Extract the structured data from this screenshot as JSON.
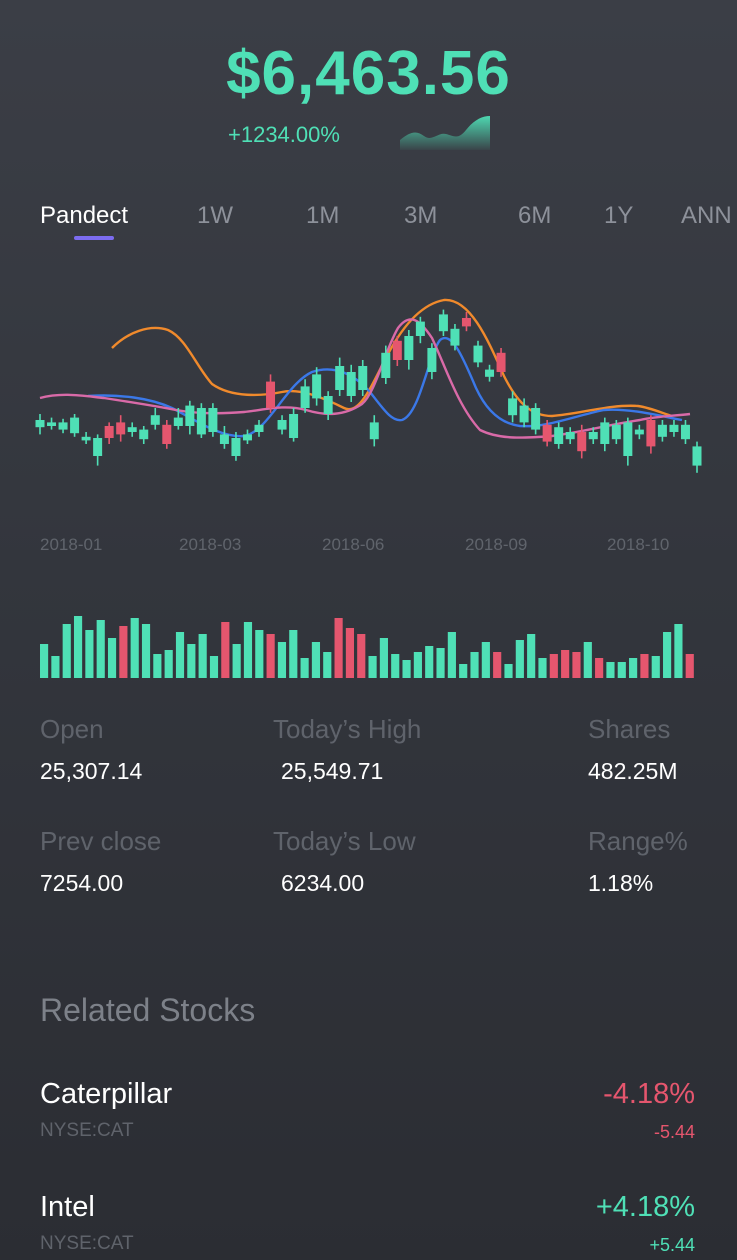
{
  "header": {
    "price": "$6,463.56",
    "change": "+1234.00%",
    "sparkline_icon": "sparkline-area-icon"
  },
  "tabs": [
    {
      "label": "Pandect",
      "active": true
    },
    {
      "label": "1W",
      "active": false
    },
    {
      "label": "1M",
      "active": false
    },
    {
      "label": "3M",
      "active": false
    },
    {
      "label": "6M",
      "active": false
    },
    {
      "label": "1Y",
      "active": false
    },
    {
      "label": "ANN",
      "active": false
    }
  ],
  "colors": {
    "up": "#4fe0b6",
    "down": "#e5566e",
    "ma_orange": "#f08a2c",
    "ma_blue": "#3b78e8",
    "ma_pink": "#d96aa8",
    "accent": "#7c6cf0"
  },
  "chart_data": [
    {
      "type": "candlestick",
      "title": "",
      "x_tick_labels": [
        "2018-01",
        "2018-03",
        "2018-06",
        "2018-09",
        "2018-10"
      ],
      "candles": [
        {
          "o": 394,
          "c": 400,
          "h": 405,
          "l": 388,
          "dir": "up"
        },
        {
          "o": 395,
          "c": 398,
          "h": 402,
          "l": 392,
          "dir": "up"
        },
        {
          "o": 392,
          "c": 398,
          "h": 401,
          "l": 389,
          "dir": "up"
        },
        {
          "o": 389,
          "c": 402,
          "h": 405,
          "l": 386,
          "dir": "up"
        },
        {
          "o": 383,
          "c": 386,
          "h": 390,
          "l": 380,
          "dir": "up"
        },
        {
          "o": 370,
          "c": 385,
          "h": 388,
          "l": 362,
          "dir": "up"
        },
        {
          "o": 385,
          "c": 395,
          "h": 398,
          "l": 380,
          "dir": "down"
        },
        {
          "o": 388,
          "c": 398,
          "h": 404,
          "l": 382,
          "dir": "down"
        },
        {
          "o": 390,
          "c": 394,
          "h": 398,
          "l": 386,
          "dir": "up"
        },
        {
          "o": 384,
          "c": 392,
          "h": 395,
          "l": 380,
          "dir": "up"
        },
        {
          "o": 396,
          "c": 404,
          "h": 410,
          "l": 392,
          "dir": "up"
        },
        {
          "o": 380,
          "c": 396,
          "h": 400,
          "l": 376,
          "dir": "down"
        },
        {
          "o": 395,
          "c": 402,
          "h": 410,
          "l": 392,
          "dir": "up"
        },
        {
          "o": 395,
          "c": 412,
          "h": 416,
          "l": 388,
          "dir": "up"
        },
        {
          "o": 388,
          "c": 410,
          "h": 414,
          "l": 385,
          "dir": "up"
        },
        {
          "o": 390,
          "c": 410,
          "h": 414,
          "l": 386,
          "dir": "up"
        },
        {
          "o": 380,
          "c": 388,
          "h": 395,
          "l": 376,
          "dir": "up"
        },
        {
          "o": 370,
          "c": 385,
          "h": 390,
          "l": 366,
          "dir": "up"
        },
        {
          "o": 383,
          "c": 388,
          "h": 392,
          "l": 380,
          "dir": "up"
        },
        {
          "o": 390,
          "c": 396,
          "h": 400,
          "l": 386,
          "dir": "up"
        },
        {
          "o": 410,
          "c": 432,
          "h": 438,
          "l": 406,
          "dir": "down"
        },
        {
          "o": 392,
          "c": 400,
          "h": 404,
          "l": 388,
          "dir": "up"
        },
        {
          "o": 385,
          "c": 405,
          "h": 410,
          "l": 382,
          "dir": "up"
        },
        {
          "o": 410,
          "c": 428,
          "h": 434,
          "l": 406,
          "dir": "up"
        },
        {
          "o": 418,
          "c": 438,
          "h": 444,
          "l": 412,
          "dir": "up"
        },
        {
          "o": 405,
          "c": 420,
          "h": 424,
          "l": 400,
          "dir": "up"
        },
        {
          "o": 425,
          "c": 445,
          "h": 452,
          "l": 420,
          "dir": "up"
        },
        {
          "o": 420,
          "c": 440,
          "h": 446,
          "l": 415,
          "dir": "up"
        },
        {
          "o": 425,
          "c": 445,
          "h": 450,
          "l": 420,
          "dir": "up"
        },
        {
          "o": 384,
          "c": 398,
          "h": 404,
          "l": 378,
          "dir": "up"
        },
        {
          "o": 435,
          "c": 456,
          "h": 462,
          "l": 430,
          "dir": "up"
        },
        {
          "o": 450,
          "c": 466,
          "h": 470,
          "l": 445,
          "dir": "down"
        },
        {
          "o": 450,
          "c": 470,
          "h": 475,
          "l": 442,
          "dir": "up"
        },
        {
          "o": 470,
          "c": 482,
          "h": 486,
          "l": 464,
          "dir": "up"
        },
        {
          "o": 440,
          "c": 460,
          "h": 464,
          "l": 434,
          "dir": "up"
        },
        {
          "o": 474,
          "c": 488,
          "h": 492,
          "l": 470,
          "dir": "up"
        },
        {
          "o": 462,
          "c": 476,
          "h": 480,
          "l": 458,
          "dir": "up"
        },
        {
          "o": 478,
          "c": 485,
          "h": 490,
          "l": 474,
          "dir": "down"
        },
        {
          "o": 448,
          "c": 462,
          "h": 466,
          "l": 444,
          "dir": "up"
        },
        {
          "o": 436,
          "c": 442,
          "h": 446,
          "l": 432,
          "dir": "up"
        },
        {
          "o": 440,
          "c": 456,
          "h": 460,
          "l": 436,
          "dir": "down"
        },
        {
          "o": 404,
          "c": 418,
          "h": 424,
          "l": 398,
          "dir": "up"
        },
        {
          "o": 398,
          "c": 412,
          "h": 418,
          "l": 394,
          "dir": "up"
        },
        {
          "o": 392,
          "c": 410,
          "h": 414,
          "l": 388,
          "dir": "up"
        },
        {
          "o": 382,
          "c": 396,
          "h": 400,
          "l": 378,
          "dir": "down"
        },
        {
          "o": 380,
          "c": 394,
          "h": 398,
          "l": 376,
          "dir": "up"
        },
        {
          "o": 384,
          "c": 390,
          "h": 394,
          "l": 380,
          "dir": "up"
        },
        {
          "o": 374,
          "c": 390,
          "h": 396,
          "l": 368,
          "dir": "down"
        },
        {
          "o": 384,
          "c": 390,
          "h": 394,
          "l": 380,
          "dir": "up"
        },
        {
          "o": 380,
          "c": 398,
          "h": 402,
          "l": 374,
          "dir": "up"
        },
        {
          "o": 384,
          "c": 396,
          "h": 400,
          "l": 380,
          "dir": "up"
        },
        {
          "o": 370,
          "c": 398,
          "h": 402,
          "l": 362,
          "dir": "up"
        },
        {
          "o": 388,
          "c": 392,
          "h": 396,
          "l": 384,
          "dir": "up"
        },
        {
          "o": 378,
          "c": 400,
          "h": 404,
          "l": 372,
          "dir": "down"
        },
        {
          "o": 386,
          "c": 396,
          "h": 400,
          "l": 382,
          "dir": "up"
        },
        {
          "o": 390,
          "c": 396,
          "h": 400,
          "l": 386,
          "dir": "up"
        },
        {
          "o": 384,
          "c": 396,
          "h": 400,
          "l": 380,
          "dir": "up"
        },
        {
          "o": 362,
          "c": 378,
          "h": 382,
          "l": 356,
          "dir": "up"
        }
      ],
      "volume": {
        "categories_count": 58,
        "bars": [
          {
            "v": 34,
            "dir": "up"
          },
          {
            "v": 22,
            "dir": "up"
          },
          {
            "v": 54,
            "dir": "up"
          },
          {
            "v": 62,
            "dir": "up"
          },
          {
            "v": 48,
            "dir": "up"
          },
          {
            "v": 58,
            "dir": "up"
          },
          {
            "v": 40,
            "dir": "up"
          },
          {
            "v": 52,
            "dir": "down"
          },
          {
            "v": 60,
            "dir": "up"
          },
          {
            "v": 54,
            "dir": "up"
          },
          {
            "v": 24,
            "dir": "up"
          },
          {
            "v": 28,
            "dir": "up"
          },
          {
            "v": 46,
            "dir": "up"
          },
          {
            "v": 34,
            "dir": "up"
          },
          {
            "v": 44,
            "dir": "up"
          },
          {
            "v": 22,
            "dir": "up"
          },
          {
            "v": 56,
            "dir": "down"
          },
          {
            "v": 34,
            "dir": "up"
          },
          {
            "v": 56,
            "dir": "up"
          },
          {
            "v": 48,
            "dir": "up"
          },
          {
            "v": 44,
            "dir": "down"
          },
          {
            "v": 36,
            "dir": "up"
          },
          {
            "v": 48,
            "dir": "up"
          },
          {
            "v": 20,
            "dir": "up"
          },
          {
            "v": 36,
            "dir": "up"
          },
          {
            "v": 26,
            "dir": "up"
          },
          {
            "v": 60,
            "dir": "down"
          },
          {
            "v": 50,
            "dir": "down"
          },
          {
            "v": 44,
            "dir": "down"
          },
          {
            "v": 22,
            "dir": "up"
          },
          {
            "v": 40,
            "dir": "up"
          },
          {
            "v": 24,
            "dir": "up"
          },
          {
            "v": 18,
            "dir": "up"
          },
          {
            "v": 26,
            "dir": "up"
          },
          {
            "v": 32,
            "dir": "up"
          },
          {
            "v": 30,
            "dir": "up"
          },
          {
            "v": 46,
            "dir": "up"
          },
          {
            "v": 14,
            "dir": "up"
          },
          {
            "v": 26,
            "dir": "up"
          },
          {
            "v": 36,
            "dir": "up"
          },
          {
            "v": 26,
            "dir": "down"
          },
          {
            "v": 14,
            "dir": "up"
          },
          {
            "v": 38,
            "dir": "up"
          },
          {
            "v": 44,
            "dir": "up"
          },
          {
            "v": 20,
            "dir": "up"
          },
          {
            "v": 24,
            "dir": "down"
          },
          {
            "v": 28,
            "dir": "down"
          },
          {
            "v": 26,
            "dir": "down"
          },
          {
            "v": 36,
            "dir": "up"
          },
          {
            "v": 20,
            "dir": "down"
          },
          {
            "v": 16,
            "dir": "up"
          },
          {
            "v": 16,
            "dir": "up"
          },
          {
            "v": 20,
            "dir": "up"
          },
          {
            "v": 24,
            "dir": "down"
          },
          {
            "v": 22,
            "dir": "up"
          },
          {
            "v": 46,
            "dir": "up"
          },
          {
            "v": 54,
            "dir": "up"
          },
          {
            "v": 24,
            "dir": "down"
          }
        ]
      }
    }
  ],
  "stats": {
    "open_label": "Open",
    "open_value": "25,307.14",
    "high_label": "Today’s High",
    "high_value": "25,549.71",
    "shares_label": "Shares",
    "shares_value": "482.25M",
    "prev_label": "Prev close",
    "prev_value": "7254.00",
    "low_label": "Today’s Low",
    "low_value": "6234.00",
    "range_label": "Range%",
    "range_value": "1.18%"
  },
  "related": {
    "title": "Related Stocks",
    "items": [
      {
        "name": "Caterpillar",
        "ticker": "NYSE:CAT",
        "pct": "-4.18%",
        "abs": "-5.44",
        "dir": "neg"
      },
      {
        "name": "Intel",
        "ticker": "NYSE:CAT",
        "pct": "+4.18%",
        "abs": "+5.44",
        "dir": "pos"
      }
    ]
  }
}
